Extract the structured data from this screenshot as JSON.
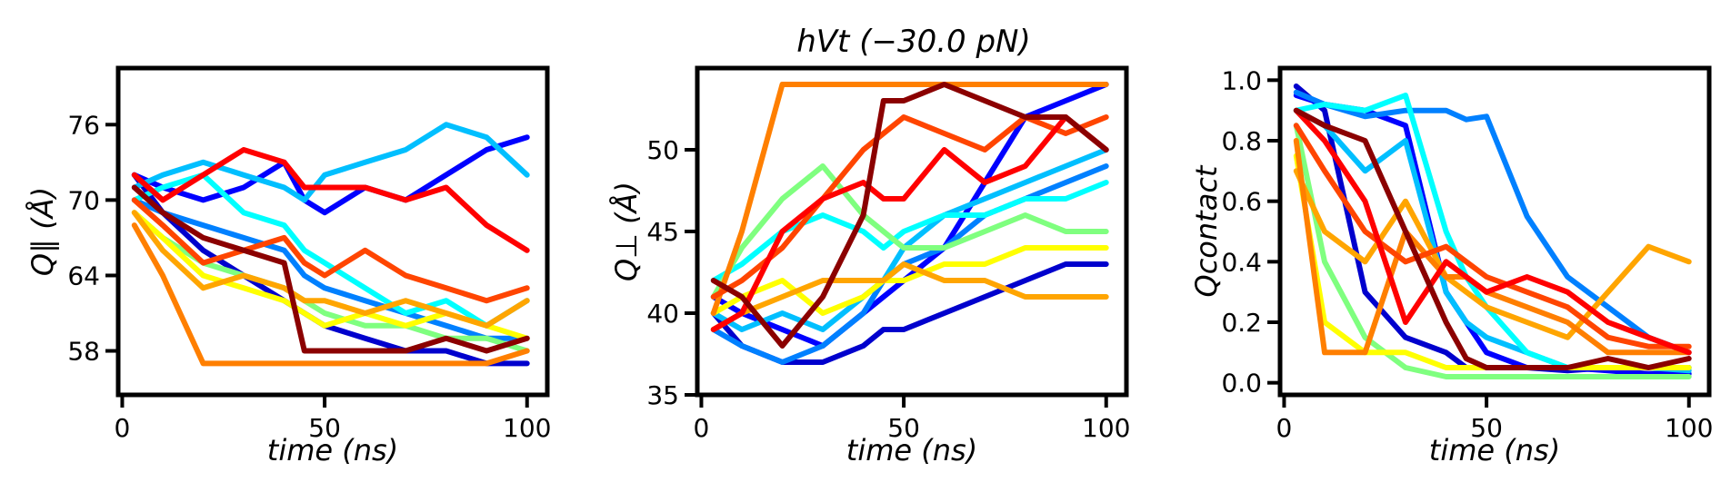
{
  "figure": {
    "title": "hVt (−30.0 pN)"
  },
  "chart_data": [
    {
      "type": "line",
      "xlabel": "time (ns)",
      "ylabel": "Q∥ (Å)",
      "xlim": [
        -1,
        105
      ],
      "ylim": [
        54.5,
        80.5
      ],
      "xticks": [
        0,
        50,
        100
      ],
      "yticks": [
        58,
        64,
        70,
        76
      ],
      "grid": false,
      "legend": "none",
      "series_count": 12,
      "colormap": [
        "#0000cd",
        "#0000ff",
        "#0080ff",
        "#00bfff",
        "#00ffff",
        "#7fff7f",
        "#ffff00",
        "#ffa500",
        "#ff7f00",
        "#ff4500",
        "#ff0000",
        "#8b0000"
      ],
      "x": [
        3,
        10,
        20,
        30,
        40,
        45,
        50,
        60,
        70,
        80,
        90,
        100
      ],
      "series": [
        {
          "values": [
            72,
            69,
            66,
            64,
            62,
            61,
            60,
            59,
            58,
            58,
            57,
            57
          ]
        },
        {
          "values": [
            72,
            71,
            70,
            71,
            73,
            70,
            69,
            71,
            70,
            72,
            74,
            75
          ]
        },
        {
          "values": [
            70,
            69,
            68,
            67,
            66,
            64,
            63,
            62,
            61,
            60,
            59,
            59
          ]
        },
        {
          "values": [
            71,
            72,
            73,
            72,
            71,
            70,
            72,
            73,
            74,
            76,
            75,
            72
          ]
        },
        {
          "values": [
            70,
            71,
            72,
            69,
            68,
            66,
            65,
            63,
            61,
            62,
            60,
            62
          ]
        },
        {
          "values": [
            69,
            67,
            65,
            64,
            63,
            62,
            61,
            60,
            60,
            59,
            59,
            58
          ]
        },
        {
          "values": [
            69,
            67,
            64,
            63,
            62,
            61,
            60,
            61,
            60,
            61,
            60,
            59
          ]
        },
        {
          "values": [
            69,
            66,
            63,
            64,
            63,
            62,
            62,
            61,
            62,
            61,
            60,
            62
          ]
        },
        {
          "values": [
            68,
            64,
            57,
            57,
            57,
            57,
            57,
            57,
            57,
            57,
            57,
            58
          ]
        },
        {
          "values": [
            70,
            68,
            65,
            66,
            67,
            65,
            64,
            66,
            64,
            63,
            62,
            63
          ]
        },
        {
          "values": [
            72,
            70,
            72,
            74,
            73,
            71,
            71,
            71,
            70,
            71,
            68,
            66
          ]
        },
        {
          "values": [
            71,
            69,
            67,
            66,
            65,
            58,
            58,
            58,
            58,
            59,
            58,
            59
          ]
        }
      ]
    },
    {
      "type": "line",
      "xlabel": "time (ns)",
      "ylabel": "Q⊥ (Å)",
      "xlim": [
        -1,
        105
      ],
      "ylim": [
        35,
        55
      ],
      "xticks": [
        0,
        50,
        100
      ],
      "yticks": [
        35,
        40,
        45,
        50
      ],
      "grid": false,
      "legend": "none",
      "series_count": 12,
      "colormap": [
        "#0000cd",
        "#0000ff",
        "#0080ff",
        "#00bfff",
        "#00ffff",
        "#7fff7f",
        "#ffff00",
        "#ffa500",
        "#ff7f00",
        "#ff4500",
        "#ff0000",
        "#8b0000"
      ],
      "x": [
        3,
        10,
        20,
        30,
        40,
        45,
        50,
        60,
        70,
        80,
        90,
        100
      ],
      "series": [
        {
          "values": [
            40,
            38,
            37,
            37,
            38,
            39,
            39,
            40,
            41,
            42,
            43,
            43
          ]
        },
        {
          "values": [
            41,
            40,
            39,
            38,
            40,
            41,
            42,
            44,
            48,
            52,
            53,
            54
          ]
        },
        {
          "values": [
            39,
            38,
            37,
            38,
            40,
            42,
            43,
            44,
            46,
            47,
            48,
            49
          ]
        },
        {
          "values": [
            40,
            39,
            40,
            39,
            41,
            42,
            44,
            46,
            47,
            48,
            49,
            50
          ]
        },
        {
          "values": [
            42,
            43,
            45,
            46,
            45,
            44,
            45,
            46,
            46,
            47,
            47,
            48
          ]
        },
        {
          "values": [
            41,
            44,
            47,
            49,
            46,
            45,
            44,
            44,
            45,
            46,
            45,
            45
          ]
        },
        {
          "values": [
            40,
            41,
            42,
            40,
            41,
            42,
            42,
            43,
            43,
            44,
            44,
            44
          ]
        },
        {
          "values": [
            39,
            40,
            41,
            42,
            42,
            42,
            43,
            42,
            42,
            41,
            41,
            41
          ]
        },
        {
          "values": [
            40,
            45,
            54,
            54,
            54,
            54,
            54,
            54,
            54,
            54,
            54,
            54
          ]
        },
        {
          "values": [
            41,
            42,
            44,
            47,
            50,
            51,
            52,
            51,
            50,
            52,
            51,
            52
          ]
        },
        {
          "values": [
            39,
            40,
            45,
            47,
            48,
            47,
            47,
            50,
            48,
            49,
            52,
            50
          ]
        },
        {
          "values": [
            42,
            41,
            38,
            41,
            46,
            53,
            53,
            54,
            53,
            52,
            52,
            50
          ]
        }
      ]
    },
    {
      "type": "line",
      "xlabel": "time (ns)",
      "ylabel": "Qcontact",
      "xlim": [
        -1,
        105
      ],
      "ylim": [
        -0.04,
        1.04
      ],
      "xticks": [
        0,
        50,
        100
      ],
      "yticks": [
        0.0,
        0.2,
        0.4,
        0.6,
        0.8,
        1.0
      ],
      "ytick_labels": [
        "0.0",
        "0.2",
        "0.4",
        "0.6",
        "0.8",
        "1.0"
      ],
      "grid": false,
      "legend": "none",
      "series_count": 12,
      "colormap": [
        "#0000cd",
        "#0000ff",
        "#0080ff",
        "#00bfff",
        "#00ffff",
        "#7fff7f",
        "#ffff00",
        "#ffa500",
        "#ff7f00",
        "#ff4500",
        "#ff0000",
        "#8b0000"
      ],
      "x": [
        3,
        10,
        20,
        30,
        40,
        45,
        50,
        60,
        70,
        80,
        90,
        100
      ],
      "series": [
        {
          "values": [
            0.98,
            0.9,
            0.3,
            0.15,
            0.1,
            0.05,
            0.05,
            0.05,
            0.04,
            0.05,
            0.05,
            0.05
          ]
        },
        {
          "values": [
            0.95,
            0.92,
            0.9,
            0.85,
            0.3,
            0.2,
            0.1,
            0.05,
            0.05,
            0.04,
            0.03,
            0.03
          ]
        },
        {
          "values": [
            0.96,
            0.92,
            0.88,
            0.9,
            0.9,
            0.87,
            0.88,
            0.55,
            0.35,
            0.25,
            0.15,
            0.1
          ]
        },
        {
          "values": [
            0.9,
            0.85,
            0.7,
            0.8,
            0.3,
            0.2,
            0.15,
            0.1,
            0.05,
            0.05,
            0.05,
            0.04
          ]
        },
        {
          "values": [
            0.9,
            0.92,
            0.9,
            0.95,
            0.5,
            0.35,
            0.25,
            0.1,
            0.05,
            0.05,
            0.05,
            0.05
          ]
        },
        {
          "values": [
            0.85,
            0.4,
            0.15,
            0.05,
            0.02,
            0.02,
            0.02,
            0.02,
            0.02,
            0.02,
            0.02,
            0.02
          ]
        },
        {
          "values": [
            0.75,
            0.2,
            0.1,
            0.1,
            0.05,
            0.05,
            0.05,
            0.05,
            0.05,
            0.05,
            0.05,
            0.05
          ]
        },
        {
          "values": [
            0.7,
            0.5,
            0.4,
            0.6,
            0.35,
            0.3,
            0.25,
            0.2,
            0.15,
            0.3,
            0.45,
            0.4
          ]
        },
        {
          "values": [
            0.8,
            0.1,
            0.1,
            0.5,
            0.35,
            0.35,
            0.3,
            0.25,
            0.2,
            0.1,
            0.1,
            0.1
          ]
        },
        {
          "values": [
            0.85,
            0.7,
            0.5,
            0.4,
            0.45,
            0.4,
            0.35,
            0.3,
            0.25,
            0.15,
            0.12,
            0.12
          ]
        },
        {
          "values": [
            0.9,
            0.8,
            0.6,
            0.2,
            0.4,
            0.35,
            0.3,
            0.35,
            0.3,
            0.2,
            0.15,
            0.1
          ]
        },
        {
          "values": [
            0.9,
            0.85,
            0.8,
            0.5,
            0.2,
            0.08,
            0.05,
            0.05,
            0.05,
            0.08,
            0.05,
            0.08
          ]
        }
      ]
    }
  ]
}
